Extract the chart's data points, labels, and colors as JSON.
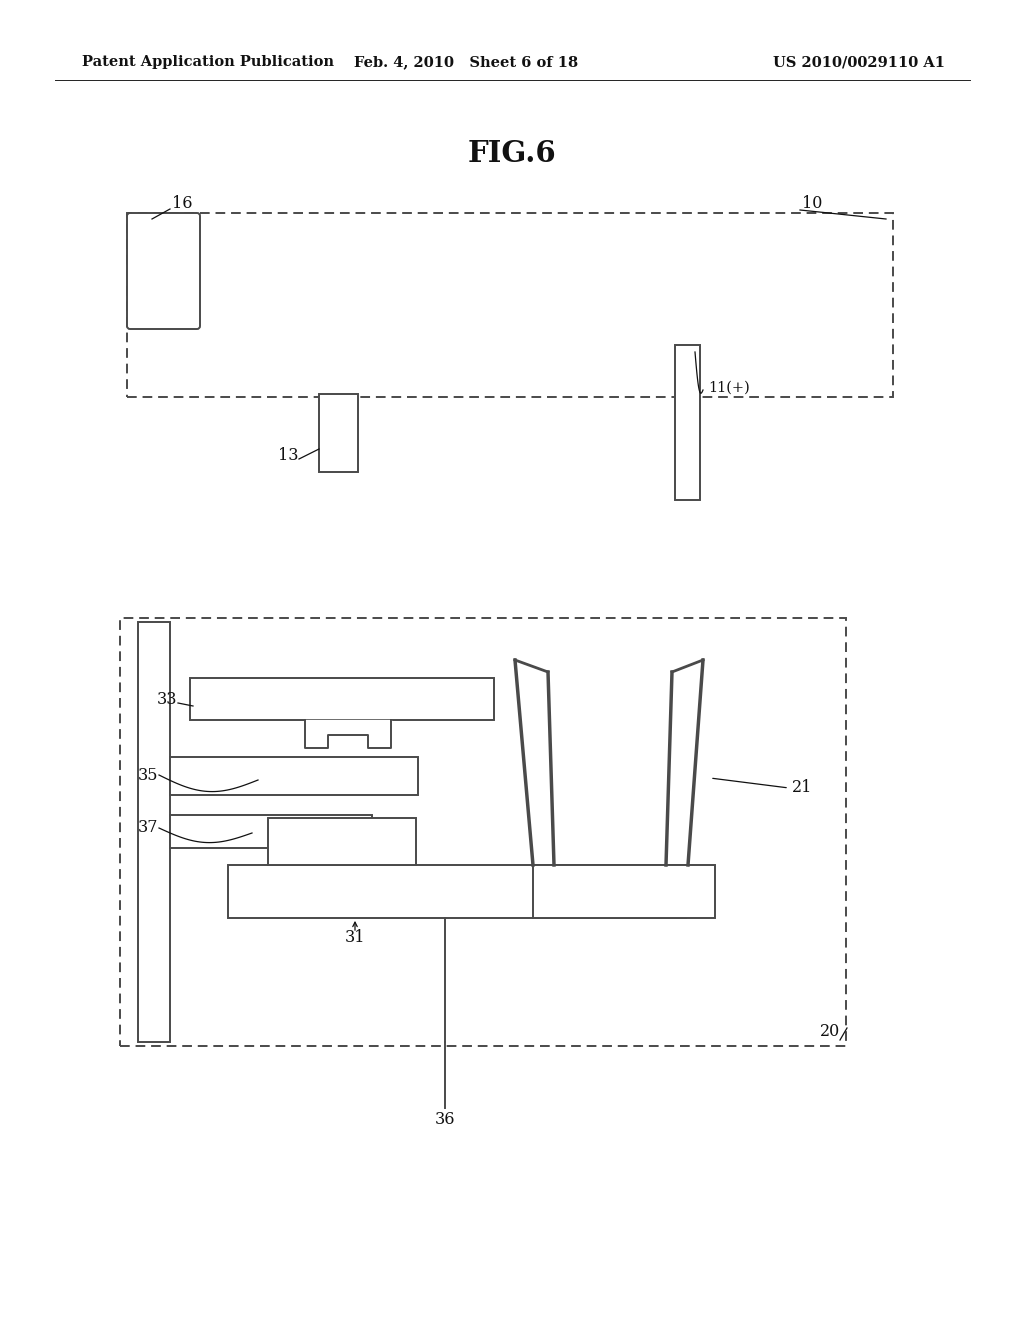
{
  "bg_color": "#ffffff",
  "header_left": "Patent Application Publication",
  "header_mid": "Feb. 4, 2010   Sheet 6 of 18",
  "header_right": "US 2010/0029110 A1",
  "fig_title": "FIG.6",
  "line_color": "#4a4a4a",
  "lw": 1.4
}
